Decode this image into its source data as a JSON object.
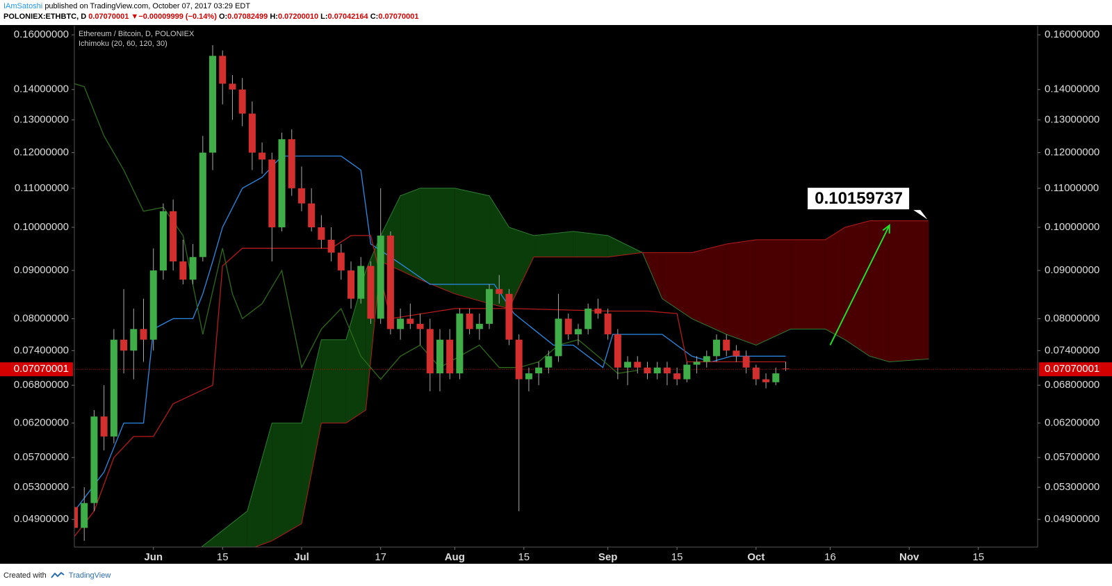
{
  "header": {
    "author": "IAmSatoshi",
    "published": "published on TradingView.com, October 07, 2017 03:29 EDT",
    "symbol": "POLONIEX:ETHBTC, D",
    "price": {
      "value": 0.07070001,
      "label": "0.07070001"
    },
    "change": {
      "value": -9.999e-05,
      "label": "−0.00009999"
    },
    "change_pct": {
      "value": -0.14,
      "label": "(−0.14%)"
    },
    "ohlc": [
      {
        "name": "O:",
        "value": 0.07082499,
        "label": "0.07082499"
      },
      {
        "name": "H:",
        "value": 0.0720001,
        "label": "0.07200010"
      },
      {
        "name": "L:",
        "value": 0.07042164,
        "label": "0.07042164"
      },
      {
        "name": "C:",
        "value": 0.07070001,
        "label": "0.07070001"
      }
    ]
  },
  "footer": {
    "created": "Created with",
    "brand": "TradingView"
  },
  "chart_data": {
    "type": "candlestick",
    "legend": [
      "Ethereum / Bitcoin, D, POLONIEX",
      "Ichimoku (20, 60, 120, 30)"
    ],
    "x": [
      "2017-05-16",
      "2017-05-18",
      "2017-05-20",
      "2017-05-22",
      "2017-05-24",
      "2017-05-26",
      "2017-05-28",
      "2017-05-30",
      "2017-06-01",
      "2017-06-03",
      "2017-06-05",
      "2017-06-07",
      "2017-06-09",
      "2017-06-11",
      "2017-06-13",
      "2017-06-15",
      "2017-06-17",
      "2017-06-19",
      "2017-06-21",
      "2017-06-23",
      "2017-06-25",
      "2017-06-27",
      "2017-06-29",
      "2017-07-01",
      "2017-07-03",
      "2017-07-05",
      "2017-07-07",
      "2017-07-09",
      "2017-07-11",
      "2017-07-13",
      "2017-07-15",
      "2017-07-17",
      "2017-07-19",
      "2017-07-21",
      "2017-07-23",
      "2017-07-25",
      "2017-07-27",
      "2017-07-29",
      "2017-07-31",
      "2017-08-02",
      "2017-08-04",
      "2017-08-06",
      "2017-08-08",
      "2017-08-10",
      "2017-08-12",
      "2017-08-14",
      "2017-08-16",
      "2017-08-18",
      "2017-08-20",
      "2017-08-22",
      "2017-08-24",
      "2017-08-26",
      "2017-08-28",
      "2017-08-30",
      "2017-09-01",
      "2017-09-03",
      "2017-09-05",
      "2017-09-07",
      "2017-09-09",
      "2017-09-11",
      "2017-09-13",
      "2017-09-15",
      "2017-09-17",
      "2017-09-19",
      "2017-09-21",
      "2017-09-23",
      "2017-09-25",
      "2017-09-27",
      "2017-09-29",
      "2017-10-01",
      "2017-10-03",
      "2017-10-05",
      "2017-10-07"
    ],
    "open": [
      0.0505,
      0.048,
      0.051,
      0.063,
      0.06,
      0.076,
      0.074,
      0.078,
      0.076,
      0.09,
      0.104,
      0.092,
      0.088,
      0.093,
      0.12,
      0.152,
      0.142,
      0.14,
      0.132,
      0.12,
      0.118,
      0.1,
      0.124,
      0.11,
      0.106,
      0.1,
      0.097,
      0.094,
      0.09,
      0.084,
      0.091,
      0.08,
      0.098,
      0.078,
      0.08,
      0.079,
      0.078,
      0.07,
      0.076,
      0.07,
      0.081,
      0.078,
      0.079,
      0.086,
      0.085,
      0.076,
      0.069,
      0.07,
      0.071,
      0.073,
      0.08,
      0.077,
      0.078,
      0.082,
      0.081,
      0.077,
      0.071,
      0.072,
      0.071,
      0.07,
      0.071,
      0.07,
      0.069,
      0.0715,
      0.072,
      0.073,
      0.076,
      0.074,
      0.073,
      0.071,
      0.069,
      0.0685,
      0.07082499
    ],
    "high": [
      0.052,
      0.053,
      0.064,
      0.068,
      0.078,
      0.086,
      0.082,
      0.084,
      0.095,
      0.106,
      0.107,
      0.097,
      0.096,
      0.125,
      0.156,
      0.154,
      0.145,
      0.144,
      0.136,
      0.123,
      0.12,
      0.126,
      0.127,
      0.116,
      0.11,
      0.103,
      0.1,
      0.096,
      0.092,
      0.093,
      0.092,
      0.11,
      0.099,
      0.082,
      0.083,
      0.081,
      0.08,
      0.078,
      0.078,
      0.082,
      0.082,
      0.081,
      0.087,
      0.089,
      0.086,
      0.077,
      0.071,
      0.072,
      0.074,
      0.085,
      0.081,
      0.079,
      0.083,
      0.084,
      0.082,
      0.078,
      0.073,
      0.073,
      0.072,
      0.072,
      0.072,
      0.071,
      0.072,
      0.073,
      0.074,
      0.077,
      0.077,
      0.075,
      0.074,
      0.0715,
      0.07,
      0.071,
      0.0720001
    ],
    "low": [
      0.047,
      0.0465,
      0.05,
      0.058,
      0.059,
      0.07,
      0.069,
      0.072,
      0.074,
      0.088,
      0.09,
      0.087,
      0.087,
      0.092,
      0.115,
      0.135,
      0.13,
      0.128,
      0.115,
      0.114,
      0.092,
      0.099,
      0.108,
      0.104,
      0.099,
      0.095,
      0.092,
      0.088,
      0.082,
      0.083,
      0.079,
      0.079,
      0.077,
      0.076,
      0.078,
      0.075,
      0.067,
      0.067,
      0.069,
      0.069,
      0.077,
      0.076,
      0.078,
      0.083,
      0.075,
      0.05,
      0.067,
      0.068,
      0.07,
      0.072,
      0.076,
      0.075,
      0.077,
      0.08,
      0.076,
      0.069,
      0.068,
      0.07,
      0.069,
      0.069,
      0.068,
      0.068,
      0.0685,
      0.07,
      0.071,
      0.072,
      0.073,
      0.072,
      0.07,
      0.068,
      0.0675,
      0.068,
      0.07042164
    ],
    "close": [
      0.048,
      0.051,
      0.063,
      0.06,
      0.076,
      0.074,
      0.078,
      0.076,
      0.09,
      0.104,
      0.092,
      0.088,
      0.093,
      0.12,
      0.152,
      0.142,
      0.14,
      0.132,
      0.12,
      0.118,
      0.1,
      0.124,
      0.11,
      0.106,
      0.1,
      0.097,
      0.094,
      0.09,
      0.084,
      0.091,
      0.08,
      0.098,
      0.078,
      0.08,
      0.079,
      0.078,
      0.07,
      0.076,
      0.07,
      0.081,
      0.078,
      0.079,
      0.086,
      0.085,
      0.076,
      0.069,
      0.07,
      0.071,
      0.073,
      0.08,
      0.077,
      0.078,
      0.082,
      0.081,
      0.077,
      0.071,
      0.072,
      0.071,
      0.07,
      0.071,
      0.07,
      0.069,
      0.0715,
      0.072,
      0.073,
      0.076,
      0.074,
      0.073,
      0.071,
      0.069,
      0.0685,
      0.07,
      0.07070001
    ],
    "up_color": "#3fae49",
    "down_color": "#d32f2f",
    "lines": [
      {
        "color": "#2a8ce8",
        "x": [
          "2017-05-16",
          "2017-05-22",
          "2017-05-26",
          "2017-05-30",
          "2017-06-01",
          "2017-06-05",
          "2017-06-09",
          "2017-06-11",
          "2017-06-13",
          "2017-06-15",
          "2017-06-19",
          "2017-06-23",
          "2017-06-27",
          "2017-07-01",
          "2017-07-09",
          "2017-07-13",
          "2017-07-15",
          "2017-07-19",
          "2017-07-23",
          "2017-07-27",
          "2017-08-01",
          "2017-08-09",
          "2017-08-13",
          "2017-08-21",
          "2017-08-25",
          "2017-08-31",
          "2017-09-02",
          "2017-09-08",
          "2017-09-12",
          "2017-09-18",
          "2017-09-22",
          "2017-09-26",
          "2017-10-07"
        ],
        "values": [
          0.05,
          0.055,
          0.062,
          0.062,
          0.078,
          0.08,
          0.08,
          0.085,
          0.092,
          0.1,
          0.11,
          0.113,
          0.119,
          0.119,
          0.119,
          0.115,
          0.096,
          0.093,
          0.09,
          0.087,
          0.087,
          0.087,
          0.081,
          0.075,
          0.075,
          0.071,
          0.077,
          0.077,
          0.077,
          0.073,
          0.072,
          0.073,
          0.073
        ]
      },
      {
        "color": "#b71c1c",
        "x": [
          "2017-05-16",
          "2017-05-20",
          "2017-05-24",
          "2017-05-28",
          "2017-06-01",
          "2017-06-05",
          "2017-06-13",
          "2017-06-15",
          "2017-06-19",
          "2017-07-07",
          "2017-07-11",
          "2017-07-15",
          "2017-07-19",
          "2017-08-01",
          "2017-08-09",
          "2017-08-13",
          "2017-09-01",
          "2017-09-09",
          "2017-09-15",
          "2017-09-17",
          "2017-10-07"
        ],
        "values": [
          0.047,
          0.05,
          0.057,
          0.06,
          0.06,
          0.065,
          0.068,
          0.091,
          0.095,
          0.095,
          0.098,
          0.098,
          0.08,
          0.082,
          0.082,
          0.082,
          0.0815,
          0.0815,
          0.081,
          0.072,
          0.072
        ]
      },
      {
        "color": "#2e6b1a",
        "x": [
          "2017-05-16",
          "2017-05-18",
          "2017-05-22",
          "2017-05-26",
          "2017-05-30",
          "2017-06-03",
          "2017-06-07",
          "2017-06-11",
          "2017-06-15",
          "2017-06-17",
          "2017-06-19",
          "2017-06-23",
          "2017-06-27",
          "2017-07-01",
          "2017-07-05",
          "2017-07-09",
          "2017-07-13",
          "2017-07-17",
          "2017-07-21",
          "2017-07-25",
          "2017-07-29",
          "2017-08-02",
          "2017-08-06",
          "2017-08-10",
          "2017-08-14",
          "2017-08-18",
          "2017-08-22",
          "2017-08-26",
          "2017-08-30",
          "2017-09-03",
          "2017-09-07"
        ],
        "values": [
          0.142,
          0.141,
          0.125,
          0.115,
          0.104,
          0.105,
          0.098,
          0.077,
          0.095,
          0.085,
          0.08,
          0.083,
          0.09,
          0.071,
          0.078,
          0.082,
          0.073,
          0.069,
          0.073,
          0.075,
          0.071,
          0.073,
          0.075,
          0.071,
          0.071,
          0.072,
          0.075,
          0.076,
          0.073,
          0.07,
          0.0705
        ]
      }
    ],
    "cloud": {
      "x": [
        "2017-06-10",
        "2017-06-20",
        "2017-06-25",
        "2017-07-01",
        "2017-07-05",
        "2017-07-10",
        "2017-07-14",
        "2017-07-17",
        "2017-07-21",
        "2017-07-25",
        "2017-08-01",
        "2017-08-08",
        "2017-08-12",
        "2017-08-17",
        "2017-08-25",
        "2017-09-01",
        "2017-09-08",
        "2017-09-12",
        "2017-09-18",
        "2017-09-25",
        "2017-10-01",
        "2017-10-08",
        "2017-10-15",
        "2017-10-19",
        "2017-10-24",
        "2017-10-28",
        "2017-11-05"
      ],
      "span_a": [
        0.0455,
        0.05,
        0.062,
        0.062,
        0.076,
        0.076,
        0.09,
        0.098,
        0.108,
        0.11,
        0.11,
        0.108,
        0.1,
        0.098,
        0.099,
        0.098,
        0.094,
        0.084,
        0.08,
        0.077,
        0.075,
        0.078,
        0.078,
        0.076,
        0.073,
        0.072,
        0.0725
      ],
      "span_b": [
        0.044,
        0.0455,
        0.0465,
        0.0485,
        0.062,
        0.062,
        0.064,
        0.092,
        0.09,
        0.088,
        0.085,
        0.083,
        0.082,
        0.093,
        0.093,
        0.093,
        0.094,
        0.094,
        0.094,
        0.096,
        0.097,
        0.097,
        0.097,
        0.1,
        0.1016,
        0.1016,
        0.1016
      ],
      "up_color": "#0b3d0b",
      "down_color": "#4a0000",
      "a_color": "#2e7d32",
      "b_color": "#b71c1c"
    },
    "log": true,
    "ylim": [
      0.0458,
      0.1636
    ],
    "yticks": [
      {
        "value": 0.049,
        "label": "0.04900000"
      },
      {
        "value": 0.053,
        "label": "0.05300000"
      },
      {
        "value": 0.057,
        "label": "0.05700000"
      },
      {
        "value": 0.062,
        "label": "0.06200000"
      },
      {
        "value": 0.068,
        "label": "0.06800000"
      },
      {
        "value": 0.074,
        "label": "0.07400000"
      },
      {
        "value": 0.08,
        "label": "0.08000000"
      },
      {
        "value": 0.09,
        "label": "0.09000000"
      },
      {
        "value": 0.1,
        "label": "0.10000000"
      },
      {
        "value": 0.11,
        "label": "0.11000000"
      },
      {
        "value": 0.12,
        "label": "0.12000000"
      },
      {
        "value": 0.13,
        "label": "0.13000000"
      },
      {
        "value": 0.14,
        "label": "0.14000000"
      },
      {
        "value": 0.16,
        "label": "0.16000000"
      }
    ],
    "xlim": [
      "2017-05-16",
      "2017-11-27"
    ],
    "xticks": [
      {
        "value": "2017-06-01",
        "label": "Jun"
      },
      {
        "value": "2017-06-15",
        "label": "15"
      },
      {
        "value": "2017-07-01",
        "label": "Jul"
      },
      {
        "value": "2017-07-17",
        "label": "17"
      },
      {
        "value": "2017-08-01",
        "label": "Aug"
      },
      {
        "value": "2017-08-15",
        "label": "15"
      },
      {
        "value": "2017-09-01",
        "label": "Sep"
      },
      {
        "value": "2017-09-15",
        "label": "15"
      },
      {
        "value": "2017-10-01",
        "label": "Oct"
      },
      {
        "value": "2017-10-16",
        "label": "16"
      },
      {
        "value": "2017-11-01",
        "label": "Nov"
      },
      {
        "value": "2017-11-15",
        "label": "15"
      }
    ],
    "last_price": {
      "value": 0.07070001,
      "label": "0.07070001"
    },
    "callout": 0.10159737,
    "arrow": {
      "x": [
        "2017-10-16",
        "2017-10-28"
      ],
      "y": [
        0.075,
        0.1005
      ],
      "color": "#22e022"
    }
  }
}
